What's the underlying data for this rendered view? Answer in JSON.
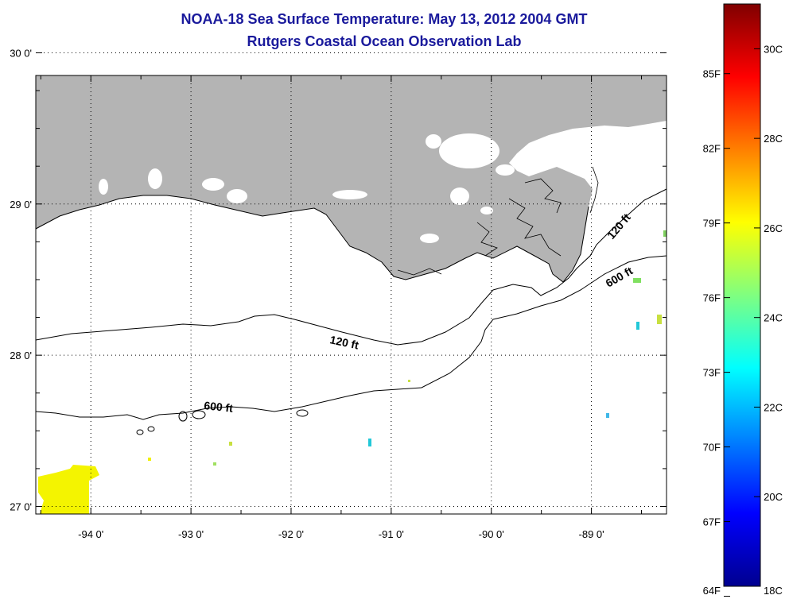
{
  "title": {
    "line1": "NOAA-18 Sea Surface Temperature:  May 13, 2012 2004 GMT",
    "line2": "Rutgers Coastal Ocean Observation Lab"
  },
  "map": {
    "lon_range": [
      -94.55,
      -88.25
    ],
    "lat_range": [
      26.95,
      29.85
    ],
    "lon_ticks": [
      {
        "value": -94,
        "label": "-94 0'"
      },
      {
        "value": -93,
        "label": "-93 0'"
      },
      {
        "value": -92,
        "label": "-92 0'"
      },
      {
        "value": -91,
        "label": "-91 0'"
      },
      {
        "value": -90,
        "label": "-90 0'"
      },
      {
        "value": -89,
        "label": "-89 0'"
      }
    ],
    "lat_ticks": [
      {
        "value": 30,
        "label": "30 0'"
      },
      {
        "value": 29,
        "label": "29 0'"
      },
      {
        "value": 28,
        "label": "28 0'"
      },
      {
        "value": 27,
        "label": "27 0'"
      }
    ],
    "land_color": "#b4b4b4",
    "ocean_color": "#ffffff",
    "contour_labels": [
      "120 ft",
      "600 ft",
      "120 ft",
      "600 ft"
    ]
  },
  "colorbar": {
    "range_c": [
      18,
      31
    ],
    "fahrenheit_labels": [
      "85F",
      "82F",
      "79F",
      "76F",
      "73F",
      "70F",
      "67F",
      "64F"
    ],
    "celsius_labels": [
      "30C",
      "28C",
      "26C",
      "24C",
      "22C",
      "20C",
      "18C"
    ]
  }
}
